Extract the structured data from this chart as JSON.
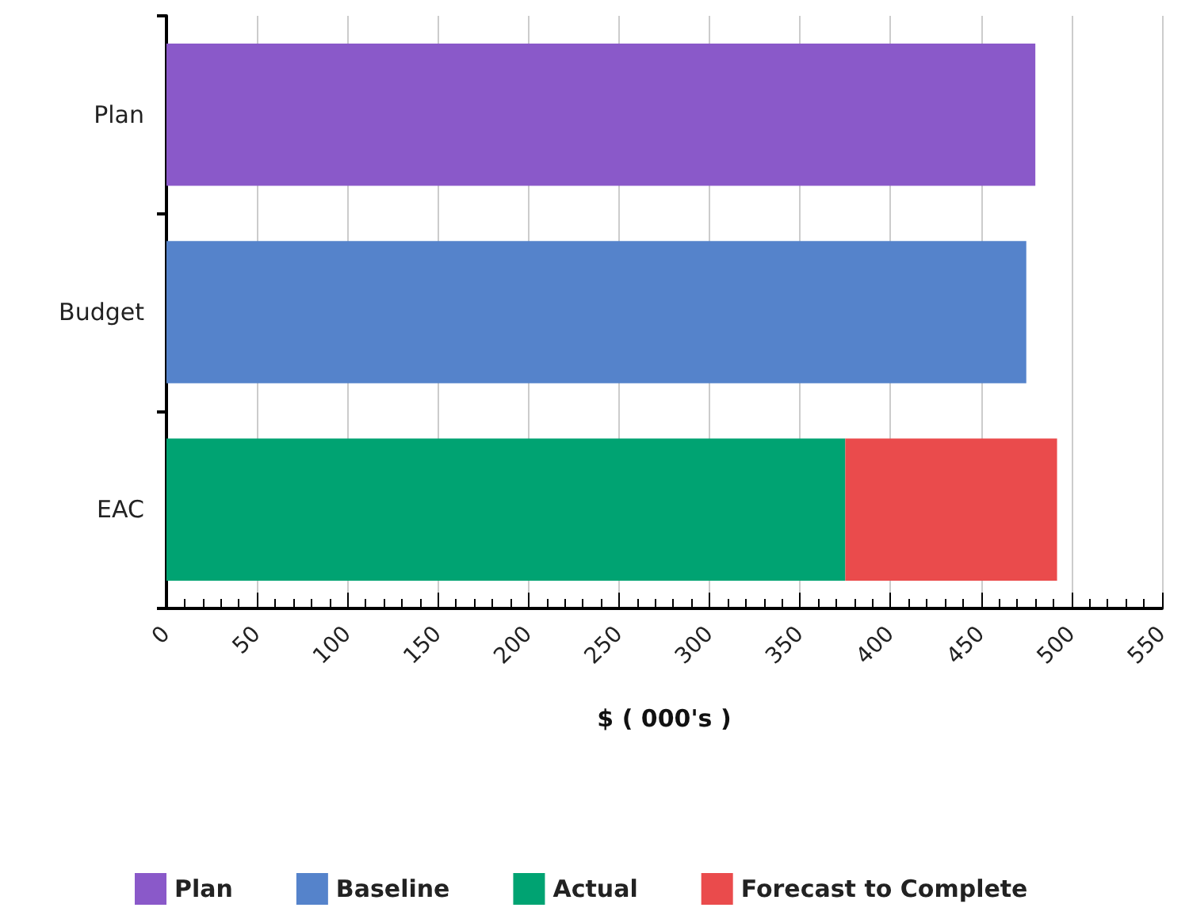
{
  "chart_data": {
    "type": "bar",
    "orientation": "horizontal",
    "stacked": true,
    "xlabel": "$ ( 000's )",
    "categories": [
      "Plan",
      "Budget",
      "EAC"
    ],
    "series": [
      {
        "name": "Plan",
        "color": "#8a59c9",
        "values": [
          480,
          null,
          null
        ]
      },
      {
        "name": "Baseline",
        "color": "#5583cb",
        "values": [
          null,
          475,
          null
        ]
      },
      {
        "name": "Actual",
        "color": "#00a372",
        "values": [
          null,
          null,
          375
        ]
      },
      {
        "name": "Forecast to Complete",
        "color": "#ea4b4c",
        "values": [
          null,
          null,
          117
        ]
      }
    ],
    "xlim": [
      0,
      550
    ],
    "xticks": [
      0,
      50,
      100,
      150,
      200,
      250,
      300,
      350,
      400,
      450,
      500,
      550
    ],
    "grid": "x",
    "legend": "bottom"
  }
}
